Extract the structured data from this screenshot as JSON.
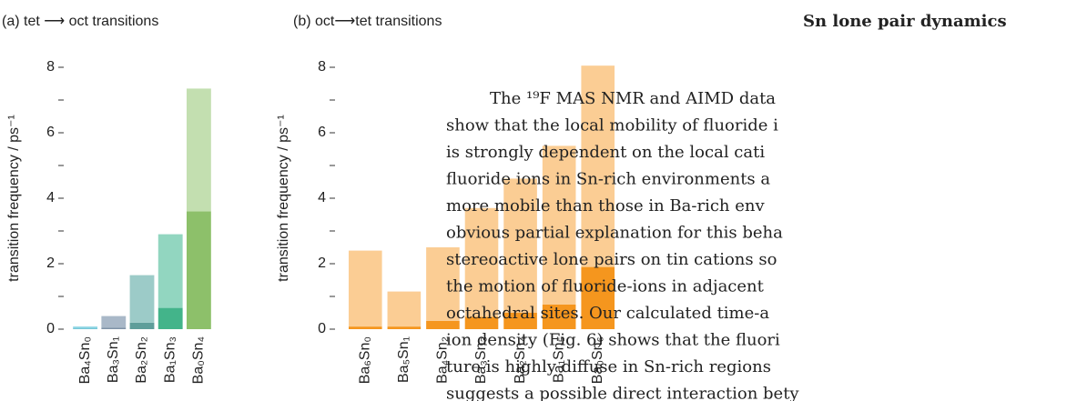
{
  "chart_data": [
    {
      "type": "stacked-bar",
      "title": "(a) tet ⟶ oct transitions",
      "ylabel": "transition frequency / ps⁻¹",
      "categories": [
        "Ba₄Sn₀",
        "Ba₃Sn₁",
        "Ba₂Sn₂",
        "Ba₁Sn₃",
        "Ba₀Sn₄"
      ],
      "series": [
        {
          "colors": [
            "#4fb3c9",
            "#7f93a8",
            "#5e9e9a",
            "#43b48a",
            "#8dc06a"
          ],
          "values": [
            0.02,
            0.05,
            0.2,
            0.65,
            3.6
          ]
        },
        {
          "colors": [
            "#8fd6e4",
            "#a9b8c8",
            "#9ccbc8",
            "#92d6c0",
            "#c3dfb0"
          ],
          "values": [
            0.06,
            0.35,
            1.45,
            2.25,
            3.75
          ]
        }
      ],
      "ylim": [
        0,
        8.3
      ],
      "yticks": [
        0,
        2,
        4,
        6,
        8
      ],
      "minor_yticks": [
        1,
        3,
        5,
        7
      ]
    },
    {
      "type": "stacked-bar",
      "title": "(b) oct⟶tet transitions",
      "ylabel": "transition frequency / ps⁻¹",
      "categories": [
        "Ba₆Sn₀",
        "Ba₅Sn₁",
        "Ba₄Sn₂",
        "Ba₃Sn₃",
        "Ba₂Sn₄",
        "Ba₁Sn₅",
        "Ba₀Sn₆"
      ],
      "series": [
        {
          "colors": [
            "#f5961e",
            "#f5961e",
            "#f5961e",
            "#f5961e",
            "#f5961e",
            "#f5961e",
            "#f5961e"
          ],
          "values": [
            0.08,
            0.08,
            0.25,
            0.38,
            0.5,
            0.75,
            1.9
          ]
        },
        {
          "colors": [
            "#fbcd94",
            "#fbcd94",
            "#fbcd94",
            "#fbcd94",
            "#fbcd94",
            "#fbcd94",
            "#fbcd94"
          ],
          "values": [
            2.32,
            1.07,
            2.25,
            3.32,
            4.1,
            4.85,
            6.15
          ]
        }
      ],
      "ylim": [
        0,
        8.3
      ],
      "yticks": [
        0,
        2,
        4,
        6,
        8
      ],
      "minor_yticks": [
        1,
        3,
        5,
        7
      ]
    }
  ],
  "text": {
    "heading": "Sn lone pair dynamics",
    "lines": [
      "The ¹⁹F MAS NMR and AIMD data",
      "show that the local mobility of fluoride i",
      "is strongly dependent on the local cati",
      "fluoride ions in Sn-rich environments a",
      "more mobile than those in Ba-rich env",
      "obvious partial explanation for this beha",
      "stereoactive lone pairs on tin cations so",
      "the motion of fluoride-ions in adjacent",
      "octahedral sites.  Our calculated time-a",
      "ion density (Fig. 6) shows that the fluori",
      "ture is highly diffuse in Sn-rich regions",
      "suggests a possible direct interaction bety"
    ]
  }
}
